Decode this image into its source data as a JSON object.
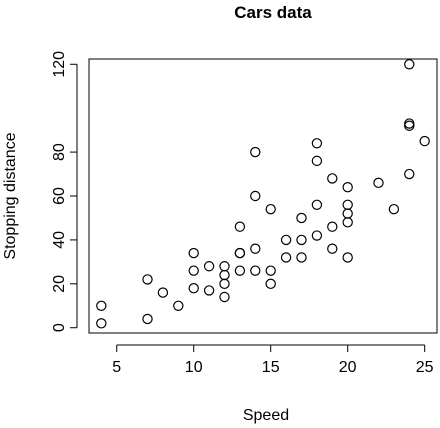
{
  "chart_data": {
    "type": "scatter",
    "title": "Cars data",
    "xlabel": "Speed",
    "ylabel": "Stopping distance",
    "xlim": [
      3.2,
      25.8
    ],
    "ylim": [
      -2.4,
      122.4
    ],
    "xticks": [
      5,
      10,
      15,
      20,
      25
    ],
    "yticks": [
      0,
      20,
      40,
      60,
      80,
      120
    ],
    "grid": false,
    "legend": "none",
    "marker": "open-circle",
    "x": [
      4,
      4,
      7,
      7,
      8,
      9,
      10,
      10,
      10,
      11,
      11,
      12,
      12,
      12,
      12,
      13,
      13,
      13,
      13,
      14,
      14,
      14,
      14,
      15,
      15,
      15,
      16,
      16,
      17,
      17,
      17,
      18,
      18,
      18,
      18,
      19,
      19,
      19,
      20,
      20,
      20,
      20,
      20,
      22,
      23,
      24,
      24,
      24,
      24,
      25
    ],
    "y": [
      2,
      10,
      4,
      22,
      16,
      10,
      18,
      26,
      34,
      17,
      28,
      14,
      20,
      24,
      28,
      26,
      34,
      34,
      46,
      26,
      36,
      60,
      80,
      20,
      26,
      54,
      32,
      40,
      32,
      40,
      50,
      42,
      56,
      76,
      84,
      36,
      46,
      68,
      32,
      48,
      52,
      56,
      64,
      66,
      54,
      70,
      92,
      93,
      120,
      85
    ]
  }
}
